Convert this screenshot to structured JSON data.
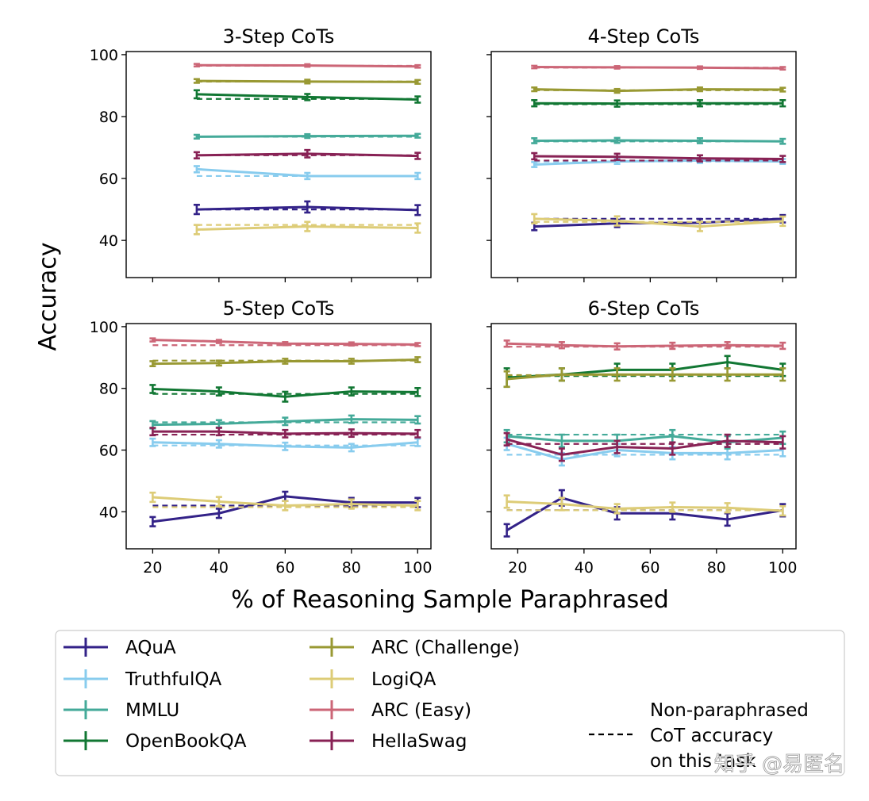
{
  "figure": {
    "ylabel": "Accuracy",
    "xlabel": "% of Reasoning Sample Paraphrased",
    "watermark": "知乎 @易匿名"
  },
  "legend": {
    "items": [
      {
        "label": "AQuA",
        "color": "#332288"
      },
      {
        "label": "TruthfulQA",
        "color": "#88CCEE"
      },
      {
        "label": "MMLU",
        "color": "#44AA99"
      },
      {
        "label": "OpenBookQA",
        "color": "#117733"
      },
      {
        "label": "ARC (Challenge)",
        "color": "#999933"
      },
      {
        "label": "LogiQA",
        "color": "#DDCC77"
      },
      {
        "label": "ARC (Easy)",
        "color": "#CC6677"
      },
      {
        "label": "HellaSwag",
        "color": "#882255"
      }
    ],
    "baseline_label_lines": [
      "Non-paraphrased",
      "CoT accuracy",
      "on this task"
    ]
  },
  "chart_data": [
    {
      "type": "line",
      "title": "3-Step CoTs",
      "xlim": [
        12,
        104
      ],
      "ylim": [
        28,
        101
      ],
      "xticks": [
        20,
        40,
        60,
        80,
        100
      ],
      "yticks": [
        40,
        60,
        80,
        100
      ],
      "show_xtick_labels": false,
      "show_ytick_labels": true,
      "x": [
        33.3,
        66.7,
        100
      ],
      "series": [
        {
          "name": "AQuA",
          "values": [
            50.0,
            50.8,
            49.8
          ],
          "err": [
            1.5,
            1.8,
            1.6
          ],
          "baseline": 50.0
        },
        {
          "name": "TruthfulQA",
          "values": [
            63.0,
            60.8,
            60.8
          ],
          "err": [
            1.0,
            1.0,
            1.0
          ],
          "baseline": 60.8
        },
        {
          "name": "MMLU",
          "values": [
            73.5,
            73.7,
            73.8
          ],
          "err": [
            0.6,
            0.6,
            0.6
          ],
          "baseline": 73.5
        },
        {
          "name": "OpenBookQA",
          "values": [
            87.2,
            86.3,
            85.5
          ],
          "err": [
            1.3,
            1.0,
            1.0
          ],
          "baseline": 85.7
        },
        {
          "name": "ARC (Challenge)",
          "values": [
            91.5,
            91.3,
            91.2
          ],
          "err": [
            0.6,
            0.6,
            0.6
          ],
          "baseline": 91.3
        },
        {
          "name": "LogiQA",
          "values": [
            43.5,
            44.5,
            44.0
          ],
          "err": [
            1.5,
            1.5,
            1.5
          ],
          "baseline": 45.0
        },
        {
          "name": "ARC (Easy)",
          "values": [
            96.6,
            96.5,
            96.2
          ],
          "err": [
            0.4,
            0.4,
            0.4
          ],
          "baseline": 96.4
        },
        {
          "name": "HellaSwag",
          "values": [
            67.5,
            68.0,
            67.3
          ],
          "err": [
            1.0,
            1.2,
            1.0
          ],
          "baseline": 67.5
        }
      ]
    },
    {
      "type": "line",
      "title": "4-Step CoTs",
      "xlim": [
        12,
        104
      ],
      "ylim": [
        28,
        101
      ],
      "xticks": [
        20,
        40,
        60,
        80,
        100
      ],
      "yticks": [
        40,
        60,
        80,
        100
      ],
      "show_xtick_labels": false,
      "show_ytick_labels": false,
      "x": [
        25,
        50,
        75,
        100
      ],
      "series": [
        {
          "name": "AQuA",
          "values": [
            44.5,
            45.5,
            45.7,
            47.0
          ],
          "err": [
            1.2,
            1.2,
            1.2,
            1.2
          ],
          "baseline": 47.0
        },
        {
          "name": "TruthfulQA",
          "values": [
            64.5,
            65.5,
            65.8,
            65.5
          ],
          "err": [
            0.8,
            0.8,
            0.8,
            0.8
          ],
          "baseline": 65.5
        },
        {
          "name": "MMLU",
          "values": [
            72.2,
            72.3,
            72.2,
            72.0
          ],
          "err": [
            0.8,
            0.8,
            0.8,
            0.8
          ],
          "baseline": 72.0
        },
        {
          "name": "OpenBookQA",
          "values": [
            84.3,
            84.2,
            84.3,
            84.3
          ],
          "err": [
            1.0,
            1.0,
            1.0,
            1.0
          ],
          "baseline": 84.0
        },
        {
          "name": "ARC (Challenge)",
          "values": [
            88.8,
            88.3,
            88.8,
            88.7
          ],
          "err": [
            0.6,
            0.6,
            0.6,
            0.6
          ],
          "baseline": 88.5
        },
        {
          "name": "LogiQA",
          "values": [
            47.0,
            46.3,
            44.5,
            46.2
          ],
          "err": [
            1.5,
            1.5,
            1.5,
            1.5
          ],
          "baseline": 46.0
        },
        {
          "name": "ARC (Easy)",
          "values": [
            96.0,
            95.9,
            95.8,
            95.6
          ],
          "err": [
            0.4,
            0.4,
            0.4,
            0.4
          ],
          "baseline": 95.8
        },
        {
          "name": "HellaSwag",
          "values": [
            67.2,
            67.0,
            66.5,
            66.3
          ],
          "err": [
            1.0,
            1.0,
            1.0,
            1.0
          ],
          "baseline": 65.8
        }
      ]
    },
    {
      "type": "line",
      "title": "5-Step CoTs",
      "xlim": [
        12,
        104
      ],
      "ylim": [
        28,
        101
      ],
      "xticks": [
        20,
        40,
        60,
        80,
        100
      ],
      "yticks": [
        40,
        60,
        80,
        100
      ],
      "show_xtick_labels": true,
      "show_ytick_labels": true,
      "x": [
        20,
        40,
        60,
        80,
        100
      ],
      "series": [
        {
          "name": "AQuA",
          "values": [
            36.8,
            39.5,
            45.0,
            43.0,
            43.0
          ],
          "err": [
            1.5,
            1.5,
            1.5,
            1.5,
            1.5
          ],
          "baseline": 42.0
        },
        {
          "name": "TruthfulQA",
          "values": [
            62.5,
            62.0,
            61.2,
            60.8,
            62.5
          ],
          "err": [
            1.2,
            1.2,
            1.2,
            1.2,
            1.2
          ],
          "baseline": 61.5
        },
        {
          "name": "MMLU",
          "values": [
            68.2,
            68.5,
            69.3,
            70.0,
            69.8
          ],
          "err": [
            1.2,
            1.2,
            1.2,
            1.2,
            1.2
          ],
          "baseline": 69.0
        },
        {
          "name": "OpenBookQA",
          "values": [
            79.8,
            79.0,
            77.3,
            79.0,
            78.8
          ],
          "err": [
            1.3,
            1.3,
            1.6,
            1.3,
            1.3
          ],
          "baseline": 78.2
        },
        {
          "name": "ARC (Challenge)",
          "values": [
            88.0,
            88.2,
            88.8,
            88.8,
            89.3
          ],
          "err": [
            0.8,
            0.8,
            0.8,
            0.8,
            0.8
          ],
          "baseline": 89.0
        },
        {
          "name": "LogiQA",
          "values": [
            44.7,
            43.3,
            42.0,
            42.5,
            42.0
          ],
          "err": [
            1.5,
            1.5,
            1.5,
            1.5,
            1.5
          ],
          "baseline": 41.5
        },
        {
          "name": "ARC (Easy)",
          "values": [
            95.7,
            95.2,
            94.5,
            94.4,
            94.2
          ],
          "err": [
            0.5,
            0.5,
            0.5,
            0.5,
            0.5
          ],
          "baseline": 94.0
        },
        {
          "name": "HellaSwag",
          "values": [
            66.0,
            66.0,
            65.3,
            65.5,
            65.3
          ],
          "err": [
            1.2,
            1.2,
            1.2,
            1.2,
            1.2
          ],
          "baseline": 65.0
        }
      ]
    },
    {
      "type": "line",
      "title": "6-Step CoTs",
      "xlim": [
        12,
        104
      ],
      "ylim": [
        28,
        101
      ],
      "xticks": [
        20,
        40,
        60,
        80,
        100
      ],
      "yticks": [
        40,
        60,
        80,
        100
      ],
      "show_xtick_labels": true,
      "show_ytick_labels": false,
      "x": [
        16.7,
        33.3,
        50,
        66.7,
        83.3,
        100
      ],
      "series": [
        {
          "name": "AQuA",
          "values": [
            34.0,
            44.5,
            39.5,
            39.5,
            37.5,
            40.5
          ],
          "err": [
            2.0,
            2.5,
            2.0,
            2.0,
            2.0,
            2.0
          ],
          "baseline": 40.5
        },
        {
          "name": "TruthfulQA",
          "values": [
            62.0,
            57.0,
            60.0,
            59.0,
            59.0,
            60.0
          ],
          "err": [
            2.0,
            2.0,
            2.0,
            2.0,
            2.0,
            2.0
          ],
          "baseline": 58.5
        },
        {
          "name": "MMLU",
          "values": [
            64.5,
            63.0,
            63.0,
            64.5,
            62.5,
            64.0
          ],
          "err": [
            2.0,
            2.0,
            2.0,
            2.0,
            2.0,
            2.0
          ],
          "baseline": 65.0
        },
        {
          "name": "OpenBookQA",
          "values": [
            83.5,
            84.5,
            86.0,
            86.0,
            88.5,
            86.0
          ],
          "err": [
            3.0,
            2.0,
            2.0,
            2.0,
            2.0,
            2.0
          ],
          "baseline": 84.0
        },
        {
          "name": "ARC (Challenge)",
          "values": [
            83.0,
            84.5,
            84.5,
            84.5,
            84.5,
            84.5
          ],
          "err": [
            2.5,
            2.0,
            2.0,
            2.0,
            2.0,
            2.0
          ],
          "baseline": 84.3
        },
        {
          "name": "LogiQA",
          "values": [
            43.3,
            42.5,
            41.0,
            41.5,
            41.3,
            40.3
          ],
          "err": [
            2.0,
            2.0,
            1.5,
            1.5,
            1.5,
            1.5
          ],
          "baseline": 40.5
        },
        {
          "name": "ARC (Easy)",
          "values": [
            94.5,
            94.0,
            93.6,
            93.8,
            94.0,
            93.8
          ],
          "err": [
            1.0,
            1.0,
            1.0,
            1.0,
            1.0,
            1.0
          ],
          "baseline": 93.5
        },
        {
          "name": "HellaSwag",
          "values": [
            63.5,
            58.5,
            61.0,
            60.5,
            63.0,
            62.5
          ],
          "err": [
            2.0,
            2.0,
            2.0,
            2.0,
            2.0,
            2.0
          ],
          "baseline": 62.0
        }
      ]
    }
  ]
}
